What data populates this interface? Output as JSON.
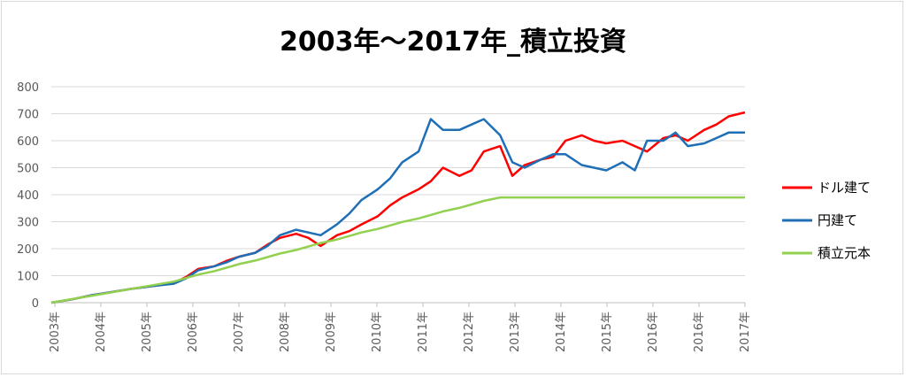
{
  "chart_data": {
    "type": "line",
    "title": "2003年～2017年_積立投資",
    "xlabel": "",
    "ylabel": "",
    "ylim": [
      0,
      800
    ],
    "yticks": [
      0,
      100,
      200,
      300,
      400,
      500,
      600,
      700,
      800
    ],
    "categories": [
      "2003年",
      "2004年",
      "2005年",
      "2006年",
      "2007年",
      "2008年",
      "2009年",
      "2010年",
      "2011年",
      "2012年",
      "2013年",
      "2014年",
      "2015年",
      "2016年",
      "2016年",
      "2017年"
    ],
    "grid": true,
    "legend": "right",
    "x": [
      2003,
      2003.5,
      2004,
      2004.5,
      2005,
      2005.5,
      2006,
      2006.3,
      2006.6,
      2007,
      2007.3,
      2007.6,
      2008,
      2008.3,
      2008.6,
      2009,
      2009.3,
      2009.6,
      2010,
      2010.3,
      2010.6,
      2011,
      2011.3,
      2011.6,
      2012,
      2012.3,
      2012.6,
      2013,
      2013.3,
      2013.6,
      2014,
      2014.3,
      2014.6,
      2015,
      2015.3,
      2015.6,
      2016,
      2016.3,
      2016.6,
      2017,
      2017.3,
      2017.6,
      2018,
      2018.3,
      2018.6,
      2019,
      2019.3,
      2019.6,
      2020
    ],
    "series": [
      {
        "name": "ドル建て",
        "color": "#ff0000",
        "values": [
          0,
          12,
          28,
          40,
          52,
          62,
          72,
          95,
          125,
          135,
          155,
          170,
          185,
          215,
          240,
          255,
          240,
          210,
          250,
          265,
          290,
          320,
          360,
          390,
          420,
          450,
          500,
          470,
          490,
          560,
          580,
          470,
          510,
          530,
          540,
          600,
          620,
          600,
          590,
          600,
          580,
          560,
          610,
          620,
          600,
          640,
          660,
          690,
          705
        ]
      },
      {
        "name": "円建て",
        "color": "#1f6fb7",
        "values": [
          0,
          12,
          28,
          40,
          52,
          62,
          70,
          90,
          120,
          135,
          150,
          170,
          185,
          210,
          250,
          270,
          260,
          250,
          290,
          330,
          380,
          420,
          460,
          520,
          560,
          680,
          640,
          640,
          660,
          680,
          620,
          520,
          500,
          530,
          550,
          550,
          510,
          500,
          490,
          520,
          490,
          600,
          600,
          630,
          580,
          590,
          610,
          630,
          630
        ]
      },
      {
        "name": "積立元本",
        "color": "#92d050",
        "values": [
          0,
          13,
          26,
          39,
          52,
          65,
          78,
          91,
          104,
          117,
          130,
          143,
          156,
          169,
          182,
          195,
          208,
          221,
          234,
          247,
          260,
          273,
          286,
          299,
          312,
          325,
          338,
          351,
          364,
          377,
          390,
          390,
          390,
          390,
          390,
          390,
          390,
          390,
          390,
          390,
          390,
          390,
          390,
          390,
          390,
          390,
          390,
          390,
          390
        ]
      }
    ]
  }
}
